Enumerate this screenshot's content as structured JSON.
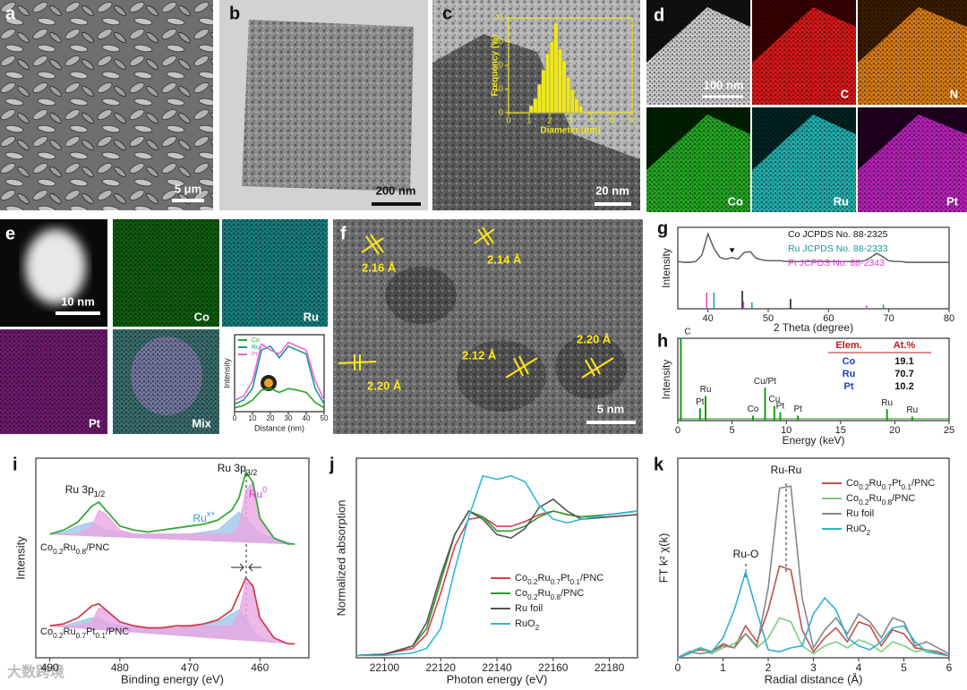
{
  "panels": {
    "a": {
      "label": "a",
      "scale_bar": "5 μm"
    },
    "b": {
      "label": "b",
      "scale_bar": "200 nm"
    },
    "c": {
      "label": "c",
      "scale_bar": "20 nm"
    },
    "d": {
      "label": "d",
      "scale_bar": "100 nm",
      "maps": [
        "C",
        "N",
        "Co",
        "Ru",
        "Pt"
      ]
    },
    "e": {
      "label": "e",
      "scale_bar": "10 nm",
      "maps": [
        "Co",
        "Ru",
        "Pt",
        "Mix"
      ]
    },
    "f": {
      "label": "f",
      "scale_bar": "5 nm",
      "spacings": [
        "2.16 Å",
        "2.14 Å",
        "2.20 Å",
        "2.12 Å",
        "2.20 Å"
      ]
    },
    "g": {
      "label": "g"
    },
    "h": {
      "label": "h"
    },
    "i": {
      "label": "i"
    },
    "j": {
      "label": "j"
    },
    "k": {
      "label": "k"
    }
  },
  "watermark": "大数跨境",
  "chart_data": [
    {
      "type": "histogram",
      "xlabel": "Diameter (nm)",
      "ylabel": "Frequency (%)",
      "bins": [
        1.0,
        1.2,
        1.4,
        1.6,
        1.8,
        2.0,
        2.2,
        2.4,
        2.6,
        2.8,
        3.0,
        3.2,
        3.4,
        3.6
      ],
      "values": [
        3,
        6,
        12,
        18,
        25,
        30,
        38,
        27,
        22,
        15,
        10,
        6,
        3
      ],
      "color": "#f0e81c",
      "xlim": [
        0,
        6
      ],
      "xticks": [
        0,
        1,
        2,
        3,
        4,
        5,
        6
      ],
      "ylim": [
        0,
        40
      ],
      "yticks": [
        0,
        10,
        20,
        30,
        40
      ]
    },
    {
      "type": "line",
      "xlabel": "Distance (nm)",
      "ylabel": "Intensity",
      "x": [
        0,
        5,
        10,
        15,
        20,
        25,
        30,
        35,
        40,
        45,
        50
      ],
      "series": [
        {
          "name": "Co",
          "color": "#22aa22",
          "values": [
            0.5,
            0.8,
            1.5,
            2.8,
            3,
            2.5,
            3,
            2.8,
            2.5,
            1.2,
            0.5
          ]
        },
        {
          "name": "Ru",
          "color": "#1a9a8a",
          "values": [
            1,
            1.5,
            3,
            8,
            8.5,
            7,
            8.5,
            8,
            7.5,
            3,
            1
          ]
        },
        {
          "name": "Pt",
          "color": "#ee66dd",
          "values": [
            1.5,
            2,
            4,
            8.8,
            8,
            7.5,
            9,
            8.5,
            8,
            4,
            1.5
          ]
        }
      ],
      "xlim": [
        0,
        50
      ],
      "xticks": [
        0,
        10,
        20,
        30,
        40,
        50
      ],
      "ylim": [
        0,
        10
      ],
      "legend": "upper left"
    },
    {
      "type": "xrd",
      "xlabel": "2 Theta (degree)",
      "ylabel": "Intensity",
      "x": [
        35,
        36,
        37,
        38,
        39,
        40,
        41,
        42,
        43,
        44,
        45,
        46,
        47,
        48,
        49,
        50,
        51,
        52,
        53,
        54,
        55,
        56,
        57,
        58,
        59,
        60,
        61,
        62,
        63,
        64,
        65,
        66,
        67,
        68,
        69,
        70,
        71,
        72,
        73,
        74,
        75,
        76,
        77,
        78,
        79,
        80
      ],
      "values": [
        58,
        57,
        57,
        58,
        66,
        92,
        74,
        63,
        61,
        63,
        61,
        69,
        70,
        62,
        60,
        59,
        59,
        59,
        58,
        58,
        58,
        58,
        58,
        58,
        58,
        58,
        58,
        58,
        58,
        58,
        58,
        59,
        63,
        68,
        64,
        59,
        58,
        58,
        57,
        57,
        57,
        57,
        57,
        57,
        57,
        57
      ],
      "color": "#555555",
      "marker": {
        "x": 44,
        "y": 71
      },
      "references": [
        {
          "name": "Co JCPDS No. 88-2325",
          "color": "#111111",
          "positions": [
            45.7,
            53.7
          ],
          "heights": [
            22,
            12
          ]
        },
        {
          "name": "Ru JCPDS No. 88-2333",
          "color": "#1a9a9a",
          "positions": [
            41.0,
            47.3,
            69.1
          ],
          "heights": [
            20,
            8,
            5
          ]
        },
        {
          "name": "Pt JCPDS No. 88-2343",
          "color": "#e040d0",
          "positions": [
            39.8,
            45.9,
            66.3
          ],
          "heights": [
            20,
            9,
            4
          ]
        }
      ],
      "xlim": [
        35,
        80
      ],
      "xticks": [
        40,
        50,
        60,
        70,
        80
      ],
      "ylim": [
        0,
        100
      ]
    },
    {
      "type": "eds",
      "xlabel": "Energy (keV)",
      "ylabel": "Intensity",
      "x": [
        0.28,
        2.05,
        2.56,
        6.93,
        8.04,
        8.9,
        9.44,
        11.07,
        19.28,
        21.6
      ],
      "values": [
        100,
        15,
        30,
        6,
        40,
        18,
        10,
        6,
        14,
        5
      ],
      "peak_labels": [
        "C",
        "Pt",
        "Ru",
        "Co",
        "Cu/Pt",
        "Cu",
        "Pt",
        "Pt",
        "Ru",
        "Ru"
      ],
      "color": "#1a9a1a",
      "xlim": [
        0,
        25
      ],
      "xticks": [
        0,
        5,
        10,
        15,
        20,
        25
      ],
      "ylim": [
        0,
        100
      ],
      "table": {
        "header": [
          "Elem.",
          "At.%"
        ],
        "rows": [
          [
            "Co",
            19.1
          ],
          [
            "Ru",
            70.7
          ],
          [
            "Pt",
            10.2
          ]
        ]
      }
    },
    {
      "type": "xps",
      "xlabel": "Binding energy (eV)",
      "ylabel": "Intensity",
      "x": [
        490,
        488,
        486,
        484,
        483,
        482,
        480,
        478,
        476,
        474,
        472,
        470,
        468,
        466,
        464,
        463,
        462,
        461,
        460,
        458,
        456,
        455
      ],
      "series": [
        {
          "name": "Co0.2Ru0.8/PNC",
          "color": "#3aa83a",
          "values": [
            62,
            64,
            68,
            76,
            78,
            74,
            66,
            64,
            63,
            64,
            65,
            66,
            67,
            69,
            74,
            80,
            93,
            88,
            70,
            60,
            57,
            57
          ]
        },
        {
          "name": "Co0.2Ru0.7Pt0.1/PNC",
          "color": "#d04050",
          "values": [
            16,
            17,
            20,
            26,
            27,
            24,
            18,
            16,
            15,
            15,
            16,
            16,
            17,
            19,
            24,
            32,
            40,
            36,
            20,
            10,
            7,
            7
          ]
        }
      ],
      "components": [
        {
          "color": "#9cc8e8",
          "values": [
            62,
            63,
            66,
            68,
            66,
            64,
            63,
            62,
            62,
            62,
            62,
            62,
            63,
            64,
            70,
            73,
            70,
            66,
            62,
            60,
            58,
            57
          ]
        },
        {
          "color": "#eaa6e2",
          "values": [
            62,
            62,
            62,
            66,
            74,
            72,
            64,
            62,
            62,
            62,
            62,
            62,
            62,
            62,
            62,
            66,
            84,
            88,
            70,
            60,
            57,
            57
          ]
        },
        {
          "color": "#9cc8e8",
          "values": [
            16,
            16,
            18,
            20,
            20,
            18,
            16,
            15,
            15,
            15,
            15,
            16,
            17,
            18,
            22,
            24,
            20,
            14,
            10,
            8,
            7,
            7
          ]
        },
        {
          "color": "#eaa6e2",
          "values": [
            16,
            16,
            16,
            18,
            25,
            24,
            18,
            16,
            15,
            15,
            15,
            16,
            16,
            16,
            16,
            22,
            38,
            36,
            20,
            10,
            7,
            7
          ]
        }
      ],
      "annotations": [
        {
          "text": "Ru 3p1/2",
          "color": "#111111"
        },
        {
          "text": "Ru 3p3/2",
          "color": "#111111"
        },
        {
          "text": "Rux+",
          "color": "#3a9ad8"
        },
        {
          "text": "Ru0",
          "color": "#d040c0"
        }
      ],
      "xlim": [
        492,
        453
      ],
      "xticks": [
        490,
        480,
        470,
        460
      ],
      "ylim": [
        0,
        100
      ]
    },
    {
      "type": "line",
      "xlabel": "Photon energy (eV)",
      "ylabel": "Normalized absorption",
      "x": [
        22090,
        22100,
        22110,
        22115,
        22120,
        22125,
        22130,
        22135,
        22140,
        22145,
        22150,
        22155,
        22160,
        22165,
        22170,
        22180,
        22190
      ],
      "series": [
        {
          "name": "Co0.2Ru0.7Pt0.1/PNC",
          "color": "#d84050",
          "values": [
            0.02,
            0.03,
            0.08,
            0.2,
            0.55,
            0.95,
            1.18,
            1.2,
            1.12,
            1.12,
            1.16,
            1.22,
            1.25,
            1.22,
            1.2,
            1.22,
            1.25
          ]
        },
        {
          "name": "Co0.2Ru0.8/PNC",
          "color": "#2a9a2a",
          "values": [
            0.02,
            0.03,
            0.1,
            0.25,
            0.65,
            1.05,
            1.25,
            1.2,
            1.08,
            1.08,
            1.12,
            1.2,
            1.25,
            1.22,
            1.2,
            1.22,
            1.25
          ]
        },
        {
          "name": "Ru foil",
          "color": "#555555",
          "values": [
            0.02,
            0.03,
            0.1,
            0.3,
            0.7,
            1.05,
            1.25,
            1.18,
            1.05,
            1.02,
            1.1,
            1.28,
            1.35,
            1.25,
            1.18,
            1.2,
            1.22
          ]
        },
        {
          "name": "RuO2",
          "color": "#30b8d8",
          "values": [
            0.02,
            0.02,
            0.04,
            0.08,
            0.25,
            0.75,
            1.2,
            1.55,
            1.52,
            1.55,
            1.5,
            1.3,
            1.18,
            1.15,
            1.18,
            1.22,
            1.25
          ]
        }
      ],
      "xlim": [
        22090,
        22190
      ],
      "xticks": [
        22100,
        22120,
        22140,
        22160,
        22180
      ],
      "ylim": [
        0,
        1.7
      ],
      "legend": "lower right"
    },
    {
      "type": "line",
      "xlabel": "Radial distance (Å)",
      "ylabel": "FT k² χ(k)",
      "x": [
        0,
        0.25,
        0.5,
        0.75,
        1,
        1.25,
        1.5,
        1.75,
        2,
        2.25,
        2.5,
        2.75,
        3,
        3.25,
        3.5,
        3.75,
        4,
        4.25,
        4.5,
        4.75,
        5,
        5.25,
        5.5,
        5.75,
        6
      ],
      "series": [
        {
          "name": "Co0.2Ru0.7Pt0.1/PNC",
          "color": "#c05050",
          "values": [
            0,
            0.3,
            0.4,
            0.3,
            0.7,
            0.5,
            1.6,
            0.8,
            2.4,
            4.6,
            4.4,
            1.4,
            0.3,
            1,
            1.5,
            0.8,
            1.8,
            1.6,
            0.6,
            1.4,
            1.2,
            0.5,
            0.4,
            0.3,
            0.1
          ]
        },
        {
          "name": "Co0.2Ru0.8/PNC",
          "color": "#80cc80",
          "values": [
            0,
            0.3,
            0.5,
            0.2,
            0.5,
            0.7,
            1.2,
            0.5,
            1,
            2,
            1.8,
            0.6,
            0.2,
            0.6,
            0.8,
            0.5,
            0.9,
            0.7,
            0.3,
            0.8,
            0.6,
            0.3,
            0.4,
            0.2,
            0.1
          ]
        },
        {
          "name": "Ru foil",
          "color": "#888888",
          "values": [
            0,
            0.3,
            0.2,
            0.3,
            0.6,
            0.5,
            1.2,
            0.6,
            3.5,
            8.5,
            8.6,
            3,
            0.5,
            1.4,
            2,
            1.2,
            2.2,
            1.8,
            1,
            2,
            1.8,
            0.6,
            0.8,
            0.5,
            0.2
          ]
        },
        {
          "name": "RuO2",
          "color": "#30b0d0",
          "values": [
            0,
            0.2,
            0.5,
            0.3,
            1,
            2.4,
            4.3,
            2.3,
            0.4,
            0.3,
            0.5,
            0.6,
            2.2,
            3,
            2.4,
            1,
            0.6,
            0.4,
            0.8,
            1.5,
            1.6,
            0.8,
            0.3,
            0.2,
            0.1
          ]
        }
      ],
      "annotations": [
        {
          "text": "Ru-Ru",
          "color": "#111111"
        },
        {
          "text": "Ru-O",
          "color": "#111111"
        }
      ],
      "xlim": [
        0,
        6
      ],
      "xticks": [
        0,
        1,
        2,
        3,
        4,
        5,
        6
      ],
      "ylim": [
        0,
        10
      ],
      "legend": "upper right"
    }
  ]
}
